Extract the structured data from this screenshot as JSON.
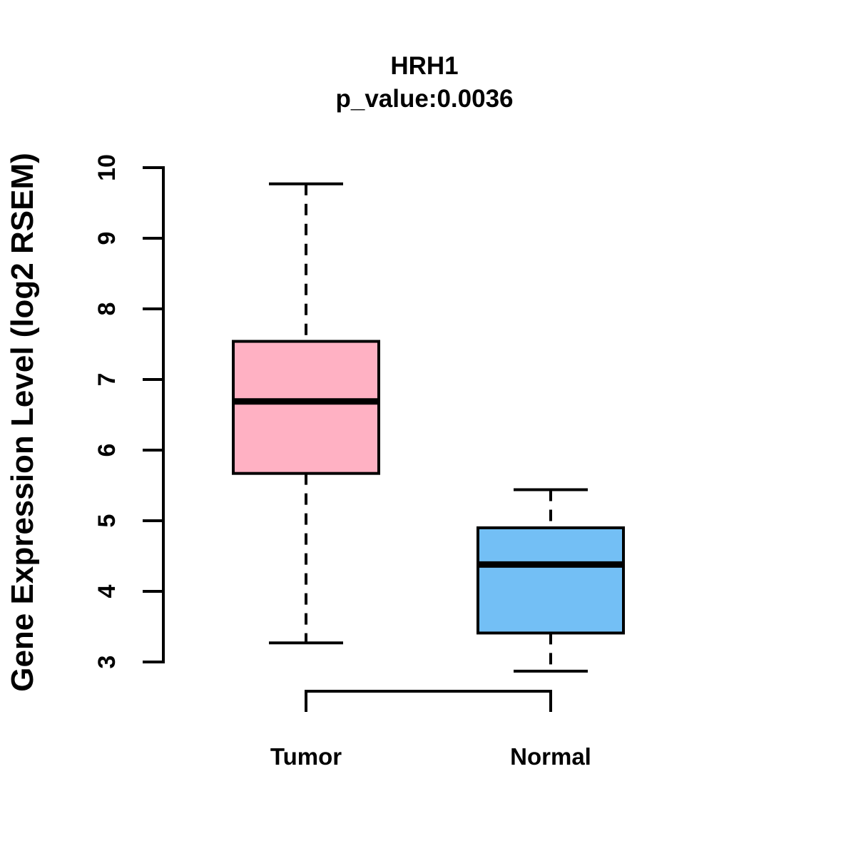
{
  "chart_data": {
    "type": "boxplot",
    "title": "HRH1",
    "subtitle": "p_value:0.0036",
    "gene": "HRH1",
    "p_value": 0.0036,
    "ylabel": "Gene Expression Level (log2 RSEM)",
    "xlabel": "",
    "ylim": [
      3,
      10
    ],
    "yticks": [
      3,
      4,
      5,
      6,
      7,
      8,
      9,
      10
    ],
    "categories": [
      "Tumor",
      "Normal"
    ],
    "grid": false,
    "legend_position": "none",
    "whisker_style": "dashed",
    "stroke_color": "#000000",
    "background_color": "#FFFFFF",
    "series": [
      {
        "name": "Tumor",
        "fill_color": "#FFB1C3",
        "stats": {
          "whisker_low": 3.27,
          "q1": 5.67,
          "median": 6.69,
          "q3": 7.54,
          "whisker_high": 9.77
        }
      },
      {
        "name": "Normal",
        "fill_color": "#73BFF5",
        "stats": {
          "whisker_low": 2.87,
          "q1": 3.41,
          "median": 4.38,
          "q3": 4.9,
          "whisker_high": 5.44
        }
      }
    ]
  }
}
